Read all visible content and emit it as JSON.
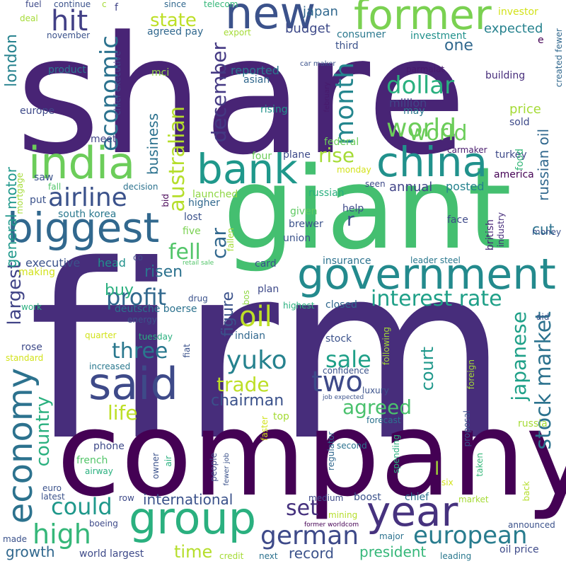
{
  "words": [
    {
      "text": "share",
      "color": "#482475"
    },
    {
      "text": "firm",
      "color": "#472d7b"
    },
    {
      "text": "company",
      "color": "#440154"
    },
    {
      "text": "giant",
      "color": "#44bf70"
    },
    {
      "text": "former",
      "color": "#7ad151"
    },
    {
      "text": "new",
      "color": "#3b528b"
    },
    {
      "text": "india",
      "color": "#6ccd5a"
    },
    {
      "text": "bank",
      "color": "#1f988b"
    },
    {
      "text": "china",
      "color": "#21918c"
    },
    {
      "text": "biggest",
      "color": "#31688e"
    },
    {
      "text": "government",
      "color": "#238a8d"
    },
    {
      "text": "said",
      "color": "#3e4a89"
    },
    {
      "text": "group",
      "color": "#2ab07f"
    },
    {
      "text": "year",
      "color": "#46327e"
    },
    {
      "text": "economy",
      "color": "#2c728e"
    },
    {
      "text": "hit",
      "color": "#424086"
    },
    {
      "text": "airline",
      "color": "#3b528b"
    },
    {
      "text": "economic",
      "color": "#2c728e"
    },
    {
      "text": "month",
      "color": "#24868e"
    },
    {
      "text": "state",
      "color": "#bddf26"
    },
    {
      "text": "japan",
      "color": "#31688e"
    },
    {
      "text": "budget",
      "color": "#3e4a89"
    },
    {
      "text": "consumer",
      "color": "#2a788e"
    },
    {
      "text": "expected",
      "color": "#26828e"
    },
    {
      "text": "investment",
      "color": "#21918c"
    },
    {
      "text": "third",
      "color": "#3b528b"
    },
    {
      "text": "dollar",
      "color": "#2ab07f"
    },
    {
      "text": "one",
      "color": "#31688e"
    },
    {
      "text": "world",
      "color": "#6ccd5a"
    },
    {
      "text": "australian",
      "color": "#b5de2b"
    },
    {
      "text": "december",
      "color": "#443983"
    },
    {
      "text": "reported",
      "color": "#2a788e"
    },
    {
      "text": "asian",
      "color": "#31688e"
    },
    {
      "text": "rise",
      "color": "#a5db36"
    },
    {
      "text": "fell",
      "color": "#52c569"
    },
    {
      "text": "car",
      "color": "#31688e"
    },
    {
      "text": "business",
      "color": "#2c728e"
    },
    {
      "text": "london",
      "color": "#26828e"
    },
    {
      "text": "russian oil",
      "color": "#31688e"
    },
    {
      "text": "profit",
      "color": "#31688e"
    },
    {
      "text": "oil",
      "color": "#bddf26"
    },
    {
      "text": "interest rate",
      "color": "#1fa088"
    },
    {
      "text": "three",
      "color": "#2a788e"
    },
    {
      "text": "yuko",
      "color": "#26828e"
    },
    {
      "text": "sale",
      "color": "#1fa088"
    },
    {
      "text": "trade",
      "color": "#bddf26"
    },
    {
      "text": "two",
      "color": "#3e4a89"
    },
    {
      "text": "agreed",
      "color": "#4ac16d"
    },
    {
      "text": "chairman",
      "color": "#3b528b"
    },
    {
      "text": "could",
      "color": "#1f988b"
    },
    {
      "text": "high",
      "color": "#35b779"
    },
    {
      "text": "german",
      "color": "#3e4a89"
    },
    {
      "text": "european",
      "color": "#287c8e"
    },
    {
      "text": "largest",
      "color": "#414487"
    },
    {
      "text": "country",
      "color": "#2ab07f"
    },
    {
      "text": "stock market",
      "color": "#2c728e"
    },
    {
      "text": "japanese",
      "color": "#1fa088"
    },
    {
      "text": "court",
      "color": "#1f988b"
    },
    {
      "text": "life",
      "color": "#bddf26"
    },
    {
      "text": "set",
      "color": "#46327e"
    },
    {
      "text": "international",
      "color": "#3b528b"
    },
    {
      "text": "time",
      "color": "#b5de2b"
    },
    {
      "text": "growth",
      "color": "#31688e"
    },
    {
      "text": "record",
      "color": "#3b528b"
    },
    {
      "text": "president",
      "color": "#35b779"
    },
    {
      "text": "buy",
      "color": "#2ab07f"
    },
    {
      "text": "risen",
      "color": "#2c728e"
    },
    {
      "text": "figure",
      "color": "#3b528b"
    },
    {
      "text": "general motor",
      "color": "#1f988b"
    },
    {
      "text": "cut",
      "color": "#2c728e"
    },
    {
      "text": "annual",
      "color": "#414487"
    },
    {
      "text": "posted",
      "color": "#26828e"
    },
    {
      "text": "world",
      "color": "#6ccd5a"
    },
    {
      "text": "million",
      "color": "#414487"
    },
    {
      "text": "may",
      "color": "#2a788e"
    },
    {
      "text": "price",
      "color": "#a5db36"
    },
    {
      "text": "sold",
      "color": "#3e4a89"
    },
    {
      "text": "turkey",
      "color": "#3e4a89"
    },
    {
      "text": "america",
      "color": "#440154"
    },
    {
      "text": "food",
      "color": "#35b779"
    },
    {
      "text": "building",
      "color": "#472d7b"
    },
    {
      "text": "created fewer",
      "color": "#31688e"
    },
    {
      "text": "parmalat",
      "color": "#481a6c"
    },
    {
      "text": "investor",
      "color": "#d2e21b"
    },
    {
      "text": "executive",
      "color": "#3b528b"
    },
    {
      "text": "head",
      "color": "#21918c"
    },
    {
      "text": "insurance",
      "color": "#2c728e"
    },
    {
      "text": "leader steel",
      "color": "#2a788e"
    },
    {
      "text": "british",
      "color": "#482475"
    },
    {
      "text": "industry",
      "color": "#472d7b"
    },
    {
      "text": "money",
      "color": "#3b528b"
    },
    {
      "text": "face",
      "color": "#3e4a89"
    },
    {
      "text": "card",
      "color": "#3b528b"
    },
    {
      "text": "union",
      "color": "#3b528b"
    },
    {
      "text": "brewer",
      "color": "#3b528b"
    },
    {
      "text": "given",
      "color": "#5ec962"
    },
    {
      "text": "help",
      "color": "#3e4a89"
    },
    {
      "text": "russian",
      "color": "#2ab07f"
    },
    {
      "text": "seen",
      "color": "#3e4a89"
    },
    {
      "text": "higher",
      "color": "#31688e"
    },
    {
      "text": "lost",
      "color": "#3b528b"
    },
    {
      "text": "five",
      "color": "#7ad151"
    },
    {
      "text": "bid",
      "color": "#440154"
    },
    {
      "text": "launched",
      "color": "#8fd744"
    },
    {
      "text": "four",
      "color": "#6ccd5a"
    },
    {
      "text": "plane",
      "color": "#3e4a89"
    },
    {
      "text": "federal",
      "color": "#6ccd5a"
    },
    {
      "text": "monday",
      "color": "#d2e21b"
    },
    {
      "text": "decision",
      "color": "#2c728e"
    },
    {
      "text": "fall",
      "color": "#52c569"
    },
    {
      "text": "put",
      "color": "#3b528b"
    },
    {
      "text": "saw",
      "color": "#3b528b"
    },
    {
      "text": "south korea",
      "color": "#2a788e"
    },
    {
      "text": "mortgage",
      "color": "#a5db36"
    },
    {
      "text": "europe",
      "color": "#3e4a89"
    },
    {
      "text": "meet",
      "color": "#414487"
    },
    {
      "text": "rising",
      "color": "#21918c"
    },
    {
      "text": "product",
      "color": "#2a788e"
    },
    {
      "text": "mci",
      "color": "#8fd744"
    },
    {
      "text": "chief executive",
      "color": "#3e4a89"
    },
    {
      "text": "agreed pay",
      "color": "#31688e"
    },
    {
      "text": "export",
      "color": "#a5db36"
    },
    {
      "text": "november",
      "color": "#3b528b"
    },
    {
      "text": "fuel",
      "color": "#3e4a89"
    },
    {
      "text": "continue",
      "color": "#3b528b"
    },
    {
      "text": "deal",
      "color": "#a5db36"
    },
    {
      "text": "c",
      "color": "#a5db36"
    },
    {
      "text": "f",
      "color": "#414487"
    },
    {
      "text": "since",
      "color": "#31688e"
    },
    {
      "text": "telecom",
      "color": "#35b779"
    },
    {
      "text": "car maker",
      "color": "#3b528b"
    },
    {
      "text": "february",
      "color": "#481a6c"
    },
    {
      "text": "carmaker",
      "color": "#481a6c"
    },
    {
      "text": "r",
      "color": "#3e4a89"
    },
    {
      "text": "e",
      "color": "#440154"
    },
    {
      "text": "making",
      "color": "#d2e21b"
    },
    {
      "text": "work",
      "color": "#2ab07f"
    },
    {
      "text": "retail sale",
      "color": "#52c569"
    },
    {
      "text": "fallen",
      "color": "#a5db36"
    },
    {
      "text": "co",
      "color": "#3e4a89"
    },
    {
      "text": "deutsche boerse",
      "color": "#2c728e"
    },
    {
      "text": "plan",
      "color": "#3e4a89"
    },
    {
      "text": "bos",
      "color": "#8fd744"
    },
    {
      "text": "highest",
      "color": "#2ab07f"
    },
    {
      "text": "closed",
      "color": "#31688e"
    },
    {
      "text": "drug",
      "color": "#3b528b"
    },
    {
      "text": "energy",
      "color": "#3b528b"
    },
    {
      "text": "indian",
      "color": "#31688e"
    },
    {
      "text": "stock",
      "color": "#3b528b"
    },
    {
      "text": "rose",
      "color": "#3e4a89"
    },
    {
      "text": "standard",
      "color": "#d2e21b"
    },
    {
      "text": "quarter",
      "color": "#d2e21b"
    },
    {
      "text": "tuesday",
      "color": "#2ab07f"
    },
    {
      "text": "fiat",
      "color": "#3b528b"
    },
    {
      "text": "increased",
      "color": "#2a788e"
    },
    {
      "text": "confidence",
      "color": "#3b528b"
    },
    {
      "text": "following",
      "color": "#a5db36"
    },
    {
      "text": "foreign",
      "color": "#a5db36"
    },
    {
      "text": "aid",
      "color": "#3b528b"
    },
    {
      "text": "luxury",
      "color": "#3b528b"
    },
    {
      "text": "job expected",
      "color": "#3b528b"
    },
    {
      "text": "top",
      "color": "#a5db36"
    },
    {
      "text": "forecast",
      "color": "#2c728e"
    },
    {
      "text": "proposal",
      "color": "#3b528b"
    },
    {
      "text": "russia",
      "color": "#a5db36"
    },
    {
      "text": "faster",
      "color": "#d2e21b"
    },
    {
      "text": "regulator",
      "color": "#31688e"
    },
    {
      "text": "second",
      "color": "#2c728e"
    },
    {
      "text": "spending",
      "color": "#2ab07f"
    },
    {
      "text": "l",
      "color": "#a5db36"
    },
    {
      "text": "taken",
      "color": "#35b779"
    },
    {
      "text": "six",
      "color": "#d2e21b"
    },
    {
      "text": "phone",
      "color": "#3e4a89"
    },
    {
      "text": "french",
      "color": "#52c569"
    },
    {
      "text": "airway",
      "color": "#2ab07f"
    },
    {
      "text": "owner",
      "color": "#3b528b"
    },
    {
      "text": "air",
      "color": "#2ab07f"
    },
    {
      "text": "people",
      "color": "#3e4a89"
    },
    {
      "text": "fewer job",
      "color": "#3b528b"
    },
    {
      "text": "euro",
      "color": "#3b528b"
    },
    {
      "text": "latest",
      "color": "#3b528b"
    },
    {
      "text": "row",
      "color": "#3e4a89"
    },
    {
      "text": "boost",
      "color": "#3b528b"
    },
    {
      "text": "medium",
      "color": "#3e4a89"
    },
    {
      "text": "chief",
      "color": "#2c728e"
    },
    {
      "text": "market",
      "color": "#a5db36"
    },
    {
      "text": "back",
      "color": "#b5de2b"
    },
    {
      "text": "announced",
      "color": "#3b528b"
    },
    {
      "text": "boeing",
      "color": "#3e4a89"
    },
    {
      "text": "mining",
      "color": "#b5de2b"
    },
    {
      "text": "former worldcom",
      "color": "#440154"
    },
    {
      "text": "major",
      "color": "#2c728e"
    },
    {
      "text": "made",
      "color": "#3b528b"
    },
    {
      "text": "world largest",
      "color": "#3e4a89"
    },
    {
      "text": "credit",
      "color": "#a5db36"
    },
    {
      "text": "next",
      "color": "#2c728e"
    },
    {
      "text": "leading",
      "color": "#2a788e"
    },
    {
      "text": "oil price",
      "color": "#3e4a89"
    }
  ]
}
